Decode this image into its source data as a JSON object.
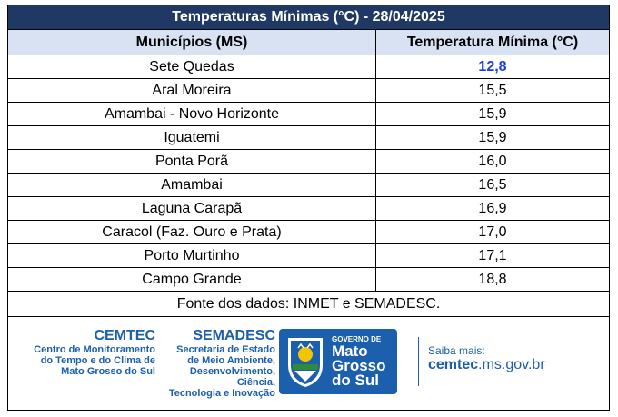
{
  "title": "Temperaturas Mínimas (°C) - 28/04/2025",
  "columns": [
    "Municípios (MS)",
    "Temperatura Mínima (°C)"
  ],
  "rows": [
    {
      "municipio": "Sete Quedas",
      "temp": "12,8"
    },
    {
      "municipio": "Aral Moreira",
      "temp": "15,5"
    },
    {
      "municipio": "Amambai - Novo Horizonte",
      "temp": "15,9"
    },
    {
      "municipio": "Iguatemi",
      "temp": "15,9"
    },
    {
      "municipio": "Ponta Porã",
      "temp": "16,0"
    },
    {
      "municipio": "Amambai",
      "temp": "16,5"
    },
    {
      "municipio": "Laguna Carapã",
      "temp": "16,9"
    },
    {
      "municipio": "Caracol (Faz. Ouro e Prata)",
      "temp": "17,0"
    },
    {
      "municipio": "Porto Murtinho",
      "temp": "17,1"
    },
    {
      "municipio": "Campo Grande",
      "temp": "18,8"
    }
  ],
  "source": "Fonte dos dados: INMET e SEMADESC.",
  "footer": {
    "cemtec_name": "CEMTEC",
    "cemtec_desc": [
      "Centro de Monitoramento",
      "do Tempo e do Clima de",
      "Mato Grosso do Sul"
    ],
    "semadesc_name": "SEMADESC",
    "semadesc_desc": [
      "Secretaria de Estado",
      "de Meio Ambiente,",
      "Desenvolvimento, Ciência,",
      "Tecnologia e Inovação"
    ],
    "gov_small": "GOVERNO DE",
    "gov_big": [
      "Mato",
      "Grosso",
      "do Sul"
    ],
    "more_label": "Saiba mais:",
    "url_bold": "cemtec",
    "url_rest": ".ms.gov.br"
  },
  "colors": {
    "header_bar": "#1f3864",
    "header_cells": "#d9e2f3",
    "minimum_value": "#1f3fd1",
    "brand_blue": "#1b5fad"
  }
}
